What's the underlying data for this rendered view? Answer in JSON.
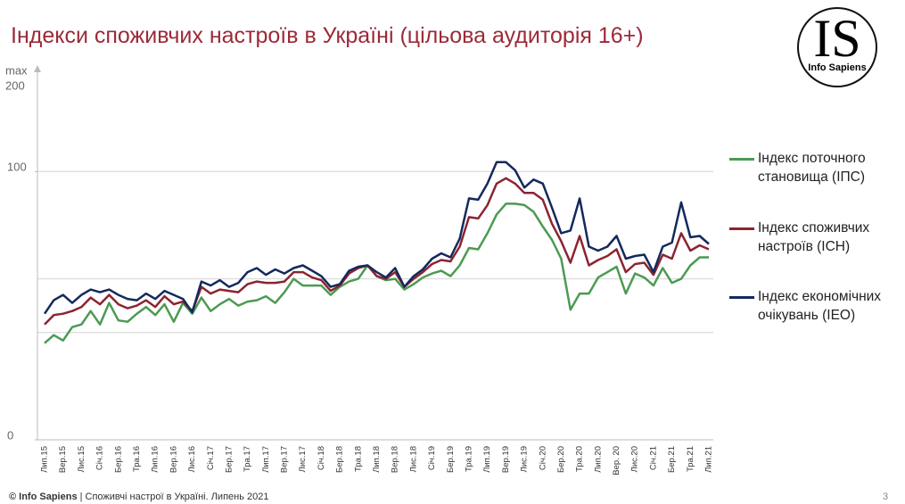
{
  "title": "Індекси споживчих настроїв в Україні (цільова аудиторія 16+)",
  "logo": {
    "text": "IS",
    "subtitle": "Info Sapiens"
  },
  "footer": {
    "brand": "© Info Sapiens",
    "text": " | Споживчі настрої в Україні. Липень 2021"
  },
  "page_number": "3",
  "chart_data": {
    "type": "line",
    "ylim": [
      0,
      139
    ],
    "yticks": [
      0,
      100
    ],
    "ygrid": [
      40,
      60,
      100
    ],
    "ymax_label": "max",
    "ymax_value": 200,
    "categories": [
      "Лип.15",
      null,
      "Вер.15",
      null,
      "Лис.15",
      null,
      "Січ.16",
      null,
      "Бер.16",
      null,
      "Тра.16",
      null,
      "Лип.16",
      null,
      "Вер.16",
      null,
      "Лис.16",
      null,
      "Січ.17",
      null,
      "Бер.17",
      null,
      "Тра.17",
      null,
      "Лип.17",
      null,
      "Вер.17",
      null,
      "Лис.17",
      null,
      "Січ.18",
      null,
      "Бер.18",
      null,
      "Тра.18",
      null,
      "Лип.18",
      null,
      "Вер.18",
      null,
      "Лис.18",
      null,
      "Січ.19",
      null,
      "Бер.19",
      null,
      "Тра.19",
      null,
      "Лип.19",
      null,
      "Вер.19",
      null,
      "Лис.19",
      null,
      "Січ.20",
      null,
      "Бер.20",
      null,
      "Тра.20",
      null,
      "Лип.20",
      null,
      "Вер. 20",
      null,
      "Лис.20",
      null,
      "Січ.21",
      null,
      "Бер.21",
      null,
      "Тра.21",
      null,
      "Лип.21"
    ],
    "series": [
      {
        "name": "Індекс поточного становища (ІПС)",
        "color": "#4c9a52",
        "values": [
          36,
          39,
          37,
          42,
          43,
          48,
          43,
          51,
          44.5,
          44,
          47,
          49.5,
          46.5,
          50.5,
          44,
          51,
          47,
          53,
          48,
          50.5,
          52.5,
          50,
          51.5,
          52,
          53.5,
          51,
          55,
          60,
          57.5,
          57.5,
          57.5,
          54,
          57,
          59,
          60,
          65,
          61,
          59.5,
          60,
          56,
          58,
          60.5,
          62,
          63,
          61,
          65,
          71.5,
          71,
          77,
          84,
          88,
          88,
          87.5,
          85,
          79.5,
          74.5,
          67.5,
          48.5,
          54.5,
          54.5,
          60.5,
          62.5,
          64.5,
          54.5,
          62,
          60.5,
          57.5,
          64,
          58.5,
          60,
          65,
          68,
          68
        ]
      },
      {
        "name": "Індекс споживчих настроїв (ІСН)",
        "color": "#8c2431",
        "values": [
          43,
          46.5,
          47,
          48,
          49.5,
          53,
          50.5,
          54,
          50.5,
          49,
          50,
          52,
          49.5,
          53.5,
          50.5,
          51.5,
          48,
          57,
          54.5,
          56,
          55.5,
          55,
          58,
          59,
          58.5,
          58.5,
          59,
          62.5,
          62.5,
          60.5,
          59.5,
          55.5,
          57.5,
          62,
          64,
          65,
          61,
          60,
          62.5,
          57,
          60,
          62.5,
          65.5,
          67,
          66.5,
          72,
          83,
          82.5,
          87.5,
          95.5,
          97.5,
          95.5,
          92,
          92,
          89.5,
          80.5,
          74,
          66,
          76,
          65,
          67,
          68.5,
          71,
          62.5,
          65.5,
          66,
          61.5,
          69,
          67.5,
          77,
          70.5,
          72.5,
          71
        ]
      },
      {
        "name": "Індекс економічних очікувань (ІЕО)",
        "color": "#14295c",
        "values": [
          47,
          52,
          54,
          51,
          54,
          56,
          55,
          56,
          54,
          52.5,
          52,
          54.5,
          52.5,
          55.5,
          54,
          52.5,
          47.5,
          59,
          57.5,
          59.5,
          57,
          58.5,
          62.5,
          64,
          61.5,
          63.5,
          62,
          64,
          65,
          63,
          61,
          57,
          58,
          63,
          64.5,
          65,
          62.5,
          60.5,
          64,
          57,
          61,
          63.5,
          67.5,
          69.5,
          68,
          75,
          90,
          89.5,
          95.5,
          103.5,
          103.5,
          100.5,
          94,
          97,
          95.5,
          86.5,
          77,
          78,
          90,
          72,
          70.5,
          72,
          76,
          67.5,
          68.5,
          69,
          62.5,
          72,
          73.5,
          88.5,
          75.5,
          76,
          73
        ]
      }
    ]
  }
}
